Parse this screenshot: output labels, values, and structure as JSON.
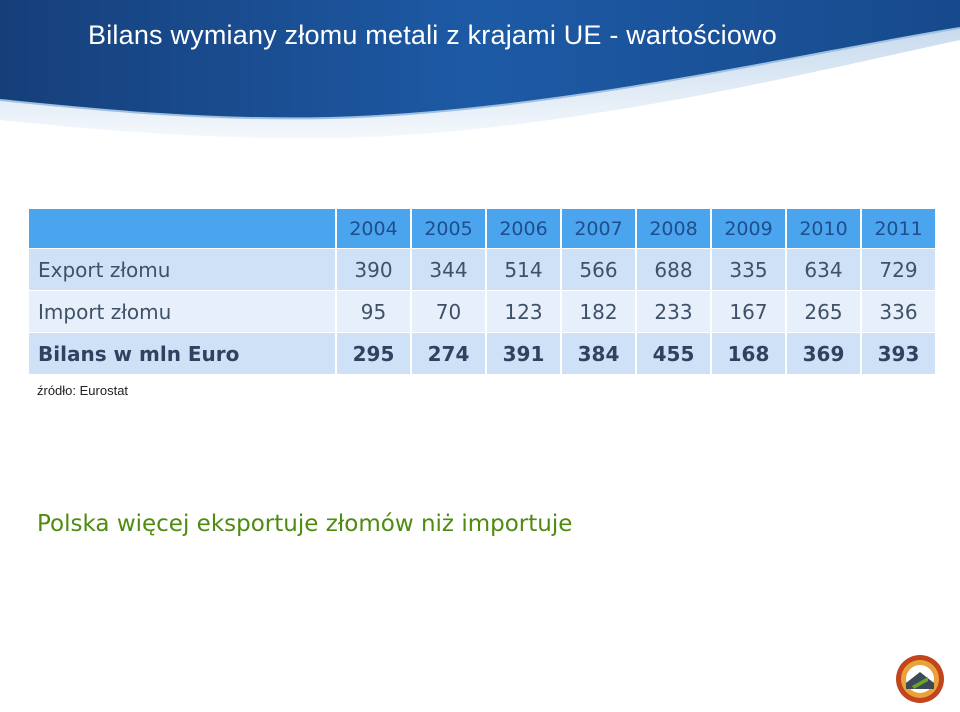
{
  "slide": {
    "title": "Bilans wymiany złomu metali z krajami UE - wartościowo",
    "source": "źródło: Eurostat",
    "conclusion": "Polska więcej eksportuje złomów niż importuje"
  },
  "table": {
    "years": [
      "2004",
      "2005",
      "2006",
      "2007",
      "2008",
      "2009",
      "2010",
      "2011"
    ],
    "rows": [
      {
        "label": "Export złomu",
        "values": [
          "390",
          "344",
          "514",
          "566",
          "688",
          "335",
          "634",
          "729"
        ]
      },
      {
        "label": "Import złomu",
        "values": [
          "95",
          "70",
          "123",
          "182",
          "233",
          "167",
          "265",
          "336"
        ]
      },
      {
        "label": "Bilans w mln Euro",
        "values": [
          "295",
          "274",
          "391",
          "384",
          "455",
          "168",
          "369",
          "393"
        ]
      }
    ]
  },
  "colors": {
    "header_band": "#1b4d8f",
    "table_header": "#4aa4ee",
    "row_dark": "#cfe1f7",
    "row_light": "#e6effa",
    "conclusion_text": "#4e8b0e"
  },
  "icons": {
    "logo": "company-logo-emblem"
  }
}
